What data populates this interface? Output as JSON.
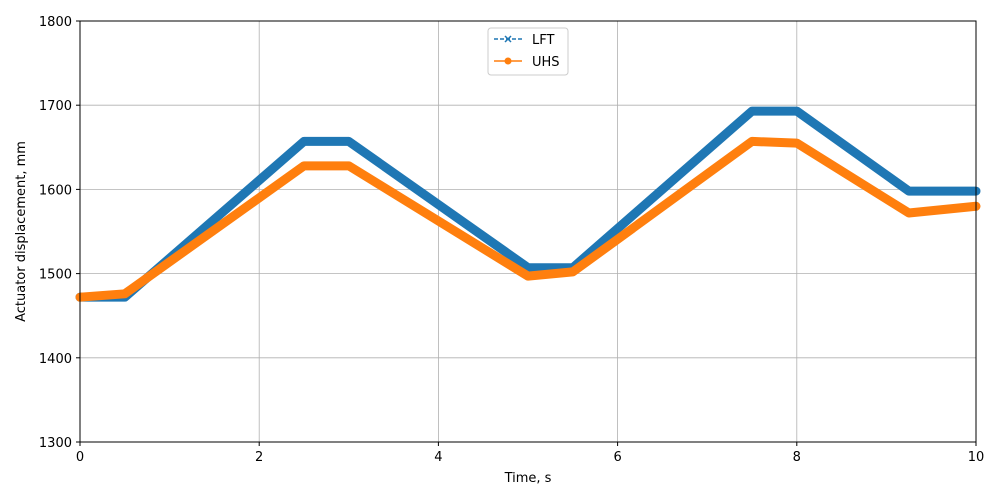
{
  "chart_data": {
    "type": "line",
    "title": "",
    "xlabel": "Time, s",
    "ylabel": "Actuator displacement, mm",
    "xlim": [
      0,
      10
    ],
    "ylim": [
      1300,
      1800
    ],
    "xticks": [
      0,
      2,
      4,
      6,
      8,
      10
    ],
    "yticks": [
      1300,
      1400,
      1500,
      1600,
      1700,
      1800
    ],
    "grid": true,
    "legend_position": "top-center",
    "series": [
      {
        "name": "LFT",
        "color": "#1f77b4",
        "line_style": "dashed",
        "marker": "x",
        "x": [
          0,
          0.5,
          2.5,
          3.0,
          5.0,
          5.5,
          7.5,
          8.0,
          9.25,
          10
        ],
        "y": [
          1472,
          1472,
          1657,
          1657,
          1507,
          1507,
          1693,
          1693,
          1598,
          1598
        ]
      },
      {
        "name": "UHS",
        "color": "#ff7f0e",
        "line_style": "solid",
        "marker": "circle",
        "x": [
          0,
          0.5,
          2.5,
          3.0,
          5.0,
          5.5,
          7.5,
          8.0,
          9.25,
          10
        ],
        "y": [
          1472,
          1476,
          1628,
          1628,
          1497,
          1502,
          1657,
          1655,
          1572,
          1580
        ]
      }
    ]
  }
}
